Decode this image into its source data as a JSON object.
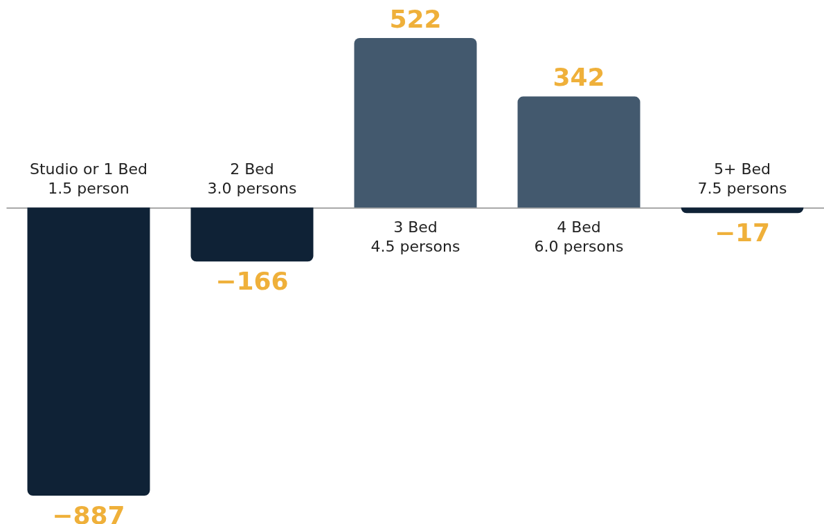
{
  "chart_data": {
    "type": "bar",
    "categories": [
      "Studio or 1 Bed\n1.5 person",
      "2 Bed\n3.0 persons",
      "3 Bed\n4.5 persons",
      "4 Bed\n6.0 persons",
      "5+ Bed\n7.5 persons"
    ],
    "values": [
      -887,
      -166,
      522,
      342,
      -17
    ],
    "colors": [
      "#0f2236",
      "#0f2236",
      "#43596e",
      "#43596e",
      "#0f2236"
    ],
    "value_labels": [
      "−887",
      "−166",
      "522",
      "342",
      "−17"
    ],
    "grid": false
  }
}
